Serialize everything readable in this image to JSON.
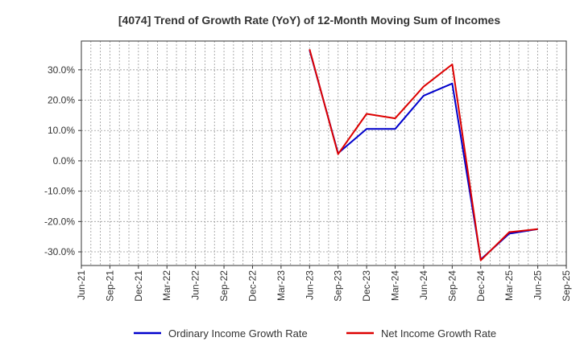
{
  "chart_data": {
    "type": "line",
    "title": "[4074]  Trend of Growth Rate (YoY) of 12-Month Moving Sum of Incomes",
    "xlabel": "",
    "ylabel": "",
    "x_tick_labels": [
      "Jun-21",
      "Sep-21",
      "Dec-21",
      "Mar-22",
      "Jun-22",
      "Sep-22",
      "Dec-22",
      "Mar-23",
      "Jun-23",
      "Sep-23",
      "Dec-23",
      "Mar-24",
      "Jun-24",
      "Sep-24",
      "Dec-24",
      "Mar-25",
      "Jun-25",
      "Sep-25"
    ],
    "y_ticks": [
      30,
      20,
      10,
      0,
      -10,
      -20,
      -30
    ],
    "y_tick_labels": [
      "30.0%",
      "20.0%",
      "10.0%",
      "0.0%",
      "-10.0%",
      "-20.0%",
      "-30.0%"
    ],
    "ylim": [
      -34.5,
      39.5
    ],
    "grid": true,
    "legend_position": "bottom",
    "series": [
      {
        "name": "Ordinary Income Growth Rate",
        "color": "#0000cc",
        "x": [
          "Jun-23",
          "Sep-23",
          "Dec-23",
          "Mar-24",
          "Jun-24",
          "Sep-24",
          "Dec-24",
          "Mar-25",
          "Jun-25"
        ],
        "values": [
          36.5,
          2.5,
          10.5,
          10.5,
          21.5,
          25.5,
          -32.5,
          -24.0,
          -22.5
        ]
      },
      {
        "name": "Net Income Growth Rate",
        "color": "#dd0000",
        "x": [
          "Jun-23",
          "Sep-23",
          "Dec-23",
          "Mar-24",
          "Jun-24",
          "Sep-24",
          "Dec-24",
          "Mar-25",
          "Jun-25"
        ],
        "values": [
          36.8,
          2.2,
          15.5,
          14.0,
          24.5,
          31.8,
          -32.8,
          -23.5,
          -22.5
        ]
      }
    ]
  }
}
